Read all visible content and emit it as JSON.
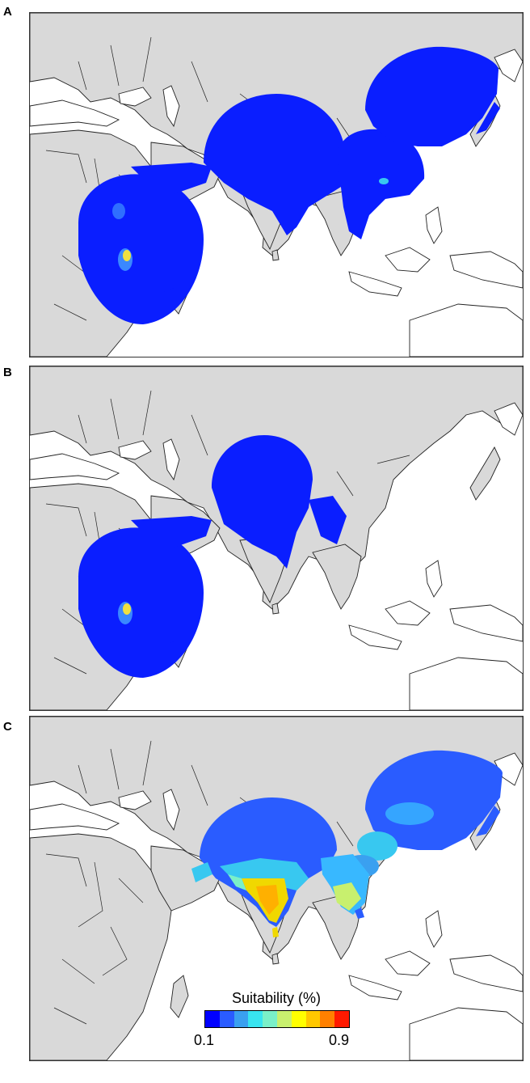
{
  "panels": [
    {
      "label": "A"
    },
    {
      "label": "B"
    },
    {
      "label": "C"
    }
  ],
  "legend": {
    "title": "Suitability (%)",
    "min_label": "0.1",
    "max_label": "0.9",
    "colors": [
      "#0000ff",
      "#2a5cff",
      "#3aa0f0",
      "#38e4f0",
      "#7af0c8",
      "#c8f06e",
      "#ffff00",
      "#ffc800",
      "#ff8000",
      "#ff1a00"
    ]
  },
  "colors": {
    "land": "#d9d9d9",
    "ocean": "#ffffff",
    "low_suitability": "#0a1eff",
    "medium_suitability": "#38b8ff",
    "high_suitability": "#ffd400"
  }
}
